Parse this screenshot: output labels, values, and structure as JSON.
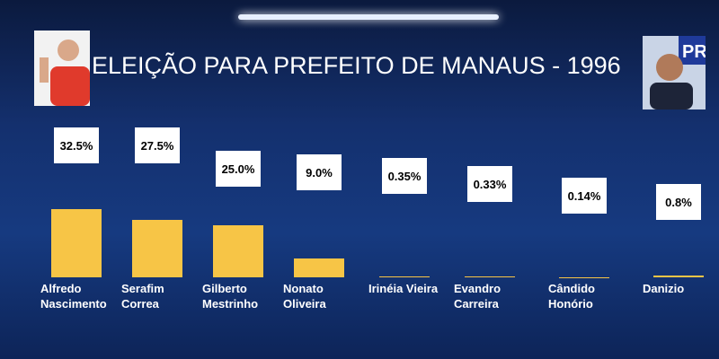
{
  "chart_data": {
    "type": "bar",
    "title": "ELEIÇÃO PARA PREFEITO DE MANAUS - 1996",
    "categories": [
      "Alfredo Nascimento",
      "Serafim Correa",
      "Gilberto Mestrinho",
      "Nonato Oliveira",
      "Irinéia Vieira",
      "Evandro Carreira",
      "Cândido Honório",
      "Danizio"
    ],
    "values": [
      32.5,
      27.5,
      25.0,
      9.0,
      0.35,
      0.33,
      0.14,
      0.8
    ],
    "value_labels": [
      "32.5%",
      "27.5%",
      "25.0%",
      "9.0%",
      "0.35%",
      "0.33%",
      "0.14%",
      "0.8%"
    ],
    "color": "#f7c546"
  }
}
